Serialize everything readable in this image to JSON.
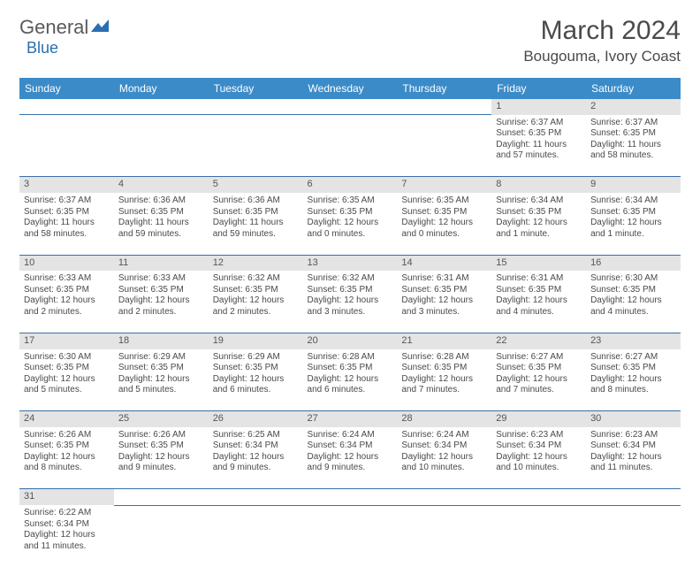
{
  "brand": {
    "text1": "General",
    "text2": "Blue"
  },
  "header": {
    "month": "March 2024",
    "location": "Bougouma, Ivory Coast"
  },
  "colors": {
    "header_bg": "#3b8bc8",
    "header_text": "#ffffff",
    "daynum_bg": "#e4e4e4",
    "border": "#3b6fa8",
    "text": "#4a4a4a",
    "brand_blue": "#2b6fb0"
  },
  "weekdays": [
    "Sunday",
    "Monday",
    "Tuesday",
    "Wednesday",
    "Thursday",
    "Friday",
    "Saturday"
  ],
  "weeks": [
    {
      "nums": [
        "",
        "",
        "",
        "",
        "",
        "1",
        "2"
      ],
      "cells": [
        null,
        null,
        null,
        null,
        null,
        {
          "sr": "Sunrise: 6:37 AM",
          "ss": "Sunset: 6:35 PM",
          "dl": "Daylight: 11 hours and 57 minutes."
        },
        {
          "sr": "Sunrise: 6:37 AM",
          "ss": "Sunset: 6:35 PM",
          "dl": "Daylight: 11 hours and 58 minutes."
        }
      ]
    },
    {
      "nums": [
        "3",
        "4",
        "5",
        "6",
        "7",
        "8",
        "9"
      ],
      "cells": [
        {
          "sr": "Sunrise: 6:37 AM",
          "ss": "Sunset: 6:35 PM",
          "dl": "Daylight: 11 hours and 58 minutes."
        },
        {
          "sr": "Sunrise: 6:36 AM",
          "ss": "Sunset: 6:35 PM",
          "dl": "Daylight: 11 hours and 59 minutes."
        },
        {
          "sr": "Sunrise: 6:36 AM",
          "ss": "Sunset: 6:35 PM",
          "dl": "Daylight: 11 hours and 59 minutes."
        },
        {
          "sr": "Sunrise: 6:35 AM",
          "ss": "Sunset: 6:35 PM",
          "dl": "Daylight: 12 hours and 0 minutes."
        },
        {
          "sr": "Sunrise: 6:35 AM",
          "ss": "Sunset: 6:35 PM",
          "dl": "Daylight: 12 hours and 0 minutes."
        },
        {
          "sr": "Sunrise: 6:34 AM",
          "ss": "Sunset: 6:35 PM",
          "dl": "Daylight: 12 hours and 1 minute."
        },
        {
          "sr": "Sunrise: 6:34 AM",
          "ss": "Sunset: 6:35 PM",
          "dl": "Daylight: 12 hours and 1 minute."
        }
      ]
    },
    {
      "nums": [
        "10",
        "11",
        "12",
        "13",
        "14",
        "15",
        "16"
      ],
      "cells": [
        {
          "sr": "Sunrise: 6:33 AM",
          "ss": "Sunset: 6:35 PM",
          "dl": "Daylight: 12 hours and 2 minutes."
        },
        {
          "sr": "Sunrise: 6:33 AM",
          "ss": "Sunset: 6:35 PM",
          "dl": "Daylight: 12 hours and 2 minutes."
        },
        {
          "sr": "Sunrise: 6:32 AM",
          "ss": "Sunset: 6:35 PM",
          "dl": "Daylight: 12 hours and 2 minutes."
        },
        {
          "sr": "Sunrise: 6:32 AM",
          "ss": "Sunset: 6:35 PM",
          "dl": "Daylight: 12 hours and 3 minutes."
        },
        {
          "sr": "Sunrise: 6:31 AM",
          "ss": "Sunset: 6:35 PM",
          "dl": "Daylight: 12 hours and 3 minutes."
        },
        {
          "sr": "Sunrise: 6:31 AM",
          "ss": "Sunset: 6:35 PM",
          "dl": "Daylight: 12 hours and 4 minutes."
        },
        {
          "sr": "Sunrise: 6:30 AM",
          "ss": "Sunset: 6:35 PM",
          "dl": "Daylight: 12 hours and 4 minutes."
        }
      ]
    },
    {
      "nums": [
        "17",
        "18",
        "19",
        "20",
        "21",
        "22",
        "23"
      ],
      "cells": [
        {
          "sr": "Sunrise: 6:30 AM",
          "ss": "Sunset: 6:35 PM",
          "dl": "Daylight: 12 hours and 5 minutes."
        },
        {
          "sr": "Sunrise: 6:29 AM",
          "ss": "Sunset: 6:35 PM",
          "dl": "Daylight: 12 hours and 5 minutes."
        },
        {
          "sr": "Sunrise: 6:29 AM",
          "ss": "Sunset: 6:35 PM",
          "dl": "Daylight: 12 hours and 6 minutes."
        },
        {
          "sr": "Sunrise: 6:28 AM",
          "ss": "Sunset: 6:35 PM",
          "dl": "Daylight: 12 hours and 6 minutes."
        },
        {
          "sr": "Sunrise: 6:28 AM",
          "ss": "Sunset: 6:35 PM",
          "dl": "Daylight: 12 hours and 7 minutes."
        },
        {
          "sr": "Sunrise: 6:27 AM",
          "ss": "Sunset: 6:35 PM",
          "dl": "Daylight: 12 hours and 7 minutes."
        },
        {
          "sr": "Sunrise: 6:27 AM",
          "ss": "Sunset: 6:35 PM",
          "dl": "Daylight: 12 hours and 8 minutes."
        }
      ]
    },
    {
      "nums": [
        "24",
        "25",
        "26",
        "27",
        "28",
        "29",
        "30"
      ],
      "cells": [
        {
          "sr": "Sunrise: 6:26 AM",
          "ss": "Sunset: 6:35 PM",
          "dl": "Daylight: 12 hours and 8 minutes."
        },
        {
          "sr": "Sunrise: 6:26 AM",
          "ss": "Sunset: 6:35 PM",
          "dl": "Daylight: 12 hours and 9 minutes."
        },
        {
          "sr": "Sunrise: 6:25 AM",
          "ss": "Sunset: 6:34 PM",
          "dl": "Daylight: 12 hours and 9 minutes."
        },
        {
          "sr": "Sunrise: 6:24 AM",
          "ss": "Sunset: 6:34 PM",
          "dl": "Daylight: 12 hours and 9 minutes."
        },
        {
          "sr": "Sunrise: 6:24 AM",
          "ss": "Sunset: 6:34 PM",
          "dl": "Daylight: 12 hours and 10 minutes."
        },
        {
          "sr": "Sunrise: 6:23 AM",
          "ss": "Sunset: 6:34 PM",
          "dl": "Daylight: 12 hours and 10 minutes."
        },
        {
          "sr": "Sunrise: 6:23 AM",
          "ss": "Sunset: 6:34 PM",
          "dl": "Daylight: 12 hours and 11 minutes."
        }
      ]
    },
    {
      "nums": [
        "31",
        "",
        "",
        "",
        "",
        "",
        ""
      ],
      "cells": [
        {
          "sr": "Sunrise: 6:22 AM",
          "ss": "Sunset: 6:34 PM",
          "dl": "Daylight: 12 hours and 11 minutes."
        },
        null,
        null,
        null,
        null,
        null,
        null
      ]
    }
  ]
}
